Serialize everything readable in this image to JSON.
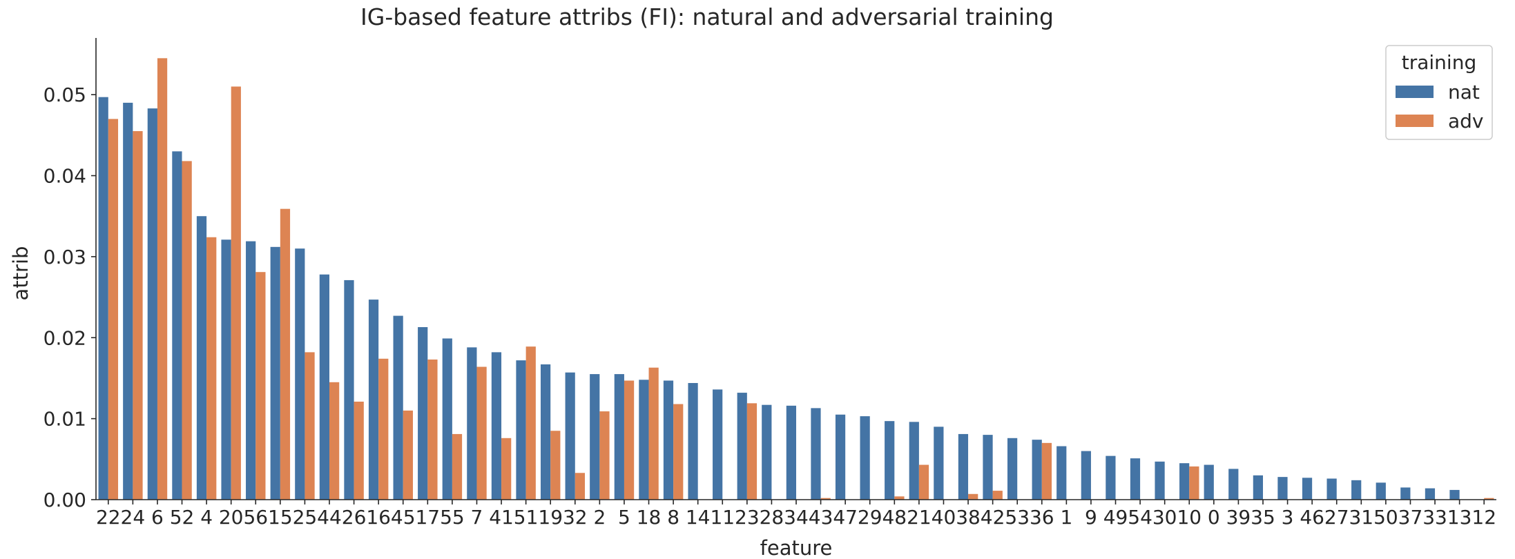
{
  "chart_data": {
    "type": "bar",
    "title": "IG-based feature attribs (FI): natural and adversarial training",
    "xlabel": "feature",
    "ylabel": "attrib",
    "ylim": [
      0,
      0.057
    ],
    "yticks": [
      0.0,
      0.01,
      0.02,
      0.03,
      0.04,
      0.05
    ],
    "ytick_labels": [
      "0.00",
      "0.01",
      "0.02",
      "0.03",
      "0.04",
      "0.05"
    ],
    "grid": false,
    "legend": {
      "title": "training",
      "position": "top-right"
    },
    "categories": [
      "22",
      "24",
      "6",
      "52",
      "4",
      "20",
      "56",
      "15",
      "25",
      "44",
      "26",
      "16",
      "45",
      "17",
      "55",
      "7",
      "41",
      "51",
      "19",
      "32",
      "2",
      "5",
      "18",
      "8",
      "14",
      "11",
      "23",
      "28",
      "34",
      "43",
      "47",
      "29",
      "48",
      "21",
      "40",
      "38",
      "42",
      "53",
      "36",
      "1",
      "9",
      "49",
      "54",
      "30",
      "10",
      "0",
      "39",
      "35",
      "3",
      "46",
      "27",
      "31",
      "50",
      "37",
      "33",
      "13",
      "12"
    ],
    "series": [
      {
        "name": "nat",
        "color": "#4474a5",
        "values": [
          0.0497,
          0.049,
          0.0483,
          0.043,
          0.035,
          0.0321,
          0.0319,
          0.0312,
          0.031,
          0.0278,
          0.0271,
          0.0247,
          0.0227,
          0.0213,
          0.0199,
          0.0188,
          0.0182,
          0.0172,
          0.0167,
          0.0157,
          0.0155,
          0.0155,
          0.0148,
          0.0147,
          0.0144,
          0.0136,
          0.0132,
          0.0117,
          0.0116,
          0.0113,
          0.0105,
          0.0103,
          0.0097,
          0.0096,
          0.009,
          0.0081,
          0.008,
          0.0076,
          0.0074,
          0.0066,
          0.006,
          0.0054,
          0.0051,
          0.0047,
          0.0045,
          0.0043,
          0.0038,
          0.003,
          0.0028,
          0.0027,
          0.0026,
          0.0024,
          0.0021,
          0.0015,
          0.0014,
          0.0012,
          0.0
        ]
      },
      {
        "name": "adv",
        "color": "#dd8453",
        "values": [
          0.047,
          0.0455,
          0.0545,
          0.0418,
          0.0324,
          0.051,
          0.0281,
          0.0359,
          0.0182,
          0.0145,
          0.0121,
          0.0174,
          0.011,
          0.0173,
          0.0081,
          0.0164,
          0.0076,
          0.0189,
          0.0085,
          0.0033,
          0.0109,
          0.0147,
          0.0163,
          0.0118,
          0.0,
          0.0,
          0.0119,
          0.0,
          0.0,
          0.0002,
          0.0,
          0.0,
          0.0004,
          0.0043,
          0.0,
          0.0007,
          0.0011,
          0.0,
          0.007,
          0.0,
          0.0,
          0.0,
          0.0,
          0.0,
          0.0041,
          0.0,
          0.0,
          0.0,
          0.0,
          0.0,
          0.0,
          0.0,
          0.0,
          0.0,
          0.0,
          0.0,
          0.0002
        ]
      }
    ]
  }
}
